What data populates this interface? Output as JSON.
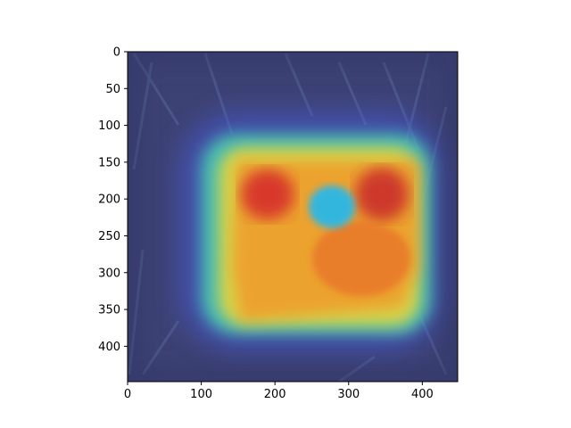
{
  "chart_data": {
    "type": "heatmap",
    "title": "",
    "xlabel": "",
    "ylabel": "",
    "xlim": [
      0,
      448
    ],
    "ylim": [
      448,
      0
    ],
    "x_ticks": [
      0,
      100,
      200,
      300,
      400
    ],
    "y_ticks": [
      0,
      50,
      100,
      150,
      200,
      250,
      300,
      350,
      400
    ],
    "colormap": "jet",
    "grid": false,
    "legend": "none",
    "image_content": "grad-cam style heatmap overlay on photo of a small bird on ground",
    "hotspots": [
      {
        "name": "left-head-region",
        "x": 195,
        "y": 215,
        "intensity": 0.95
      },
      {
        "name": "right-wing-region",
        "x": 345,
        "y": 210,
        "intensity": 0.95
      },
      {
        "name": "body-region",
        "x": 300,
        "y": 290,
        "intensity": 0.85
      },
      {
        "name": "lower-body-region",
        "x": 250,
        "y": 330,
        "intensity": 0.75
      },
      {
        "name": "bird-head-cyan",
        "x": 268,
        "y": 212,
        "intensity": 0.35
      }
    ]
  },
  "colors": {
    "background_photo": "#3a3f6e",
    "hot": "#d8232a",
    "warm": "#f2a22a",
    "mid": "#e6e03a",
    "cool": "#38d0e8",
    "cold": "#2a3a9a"
  }
}
